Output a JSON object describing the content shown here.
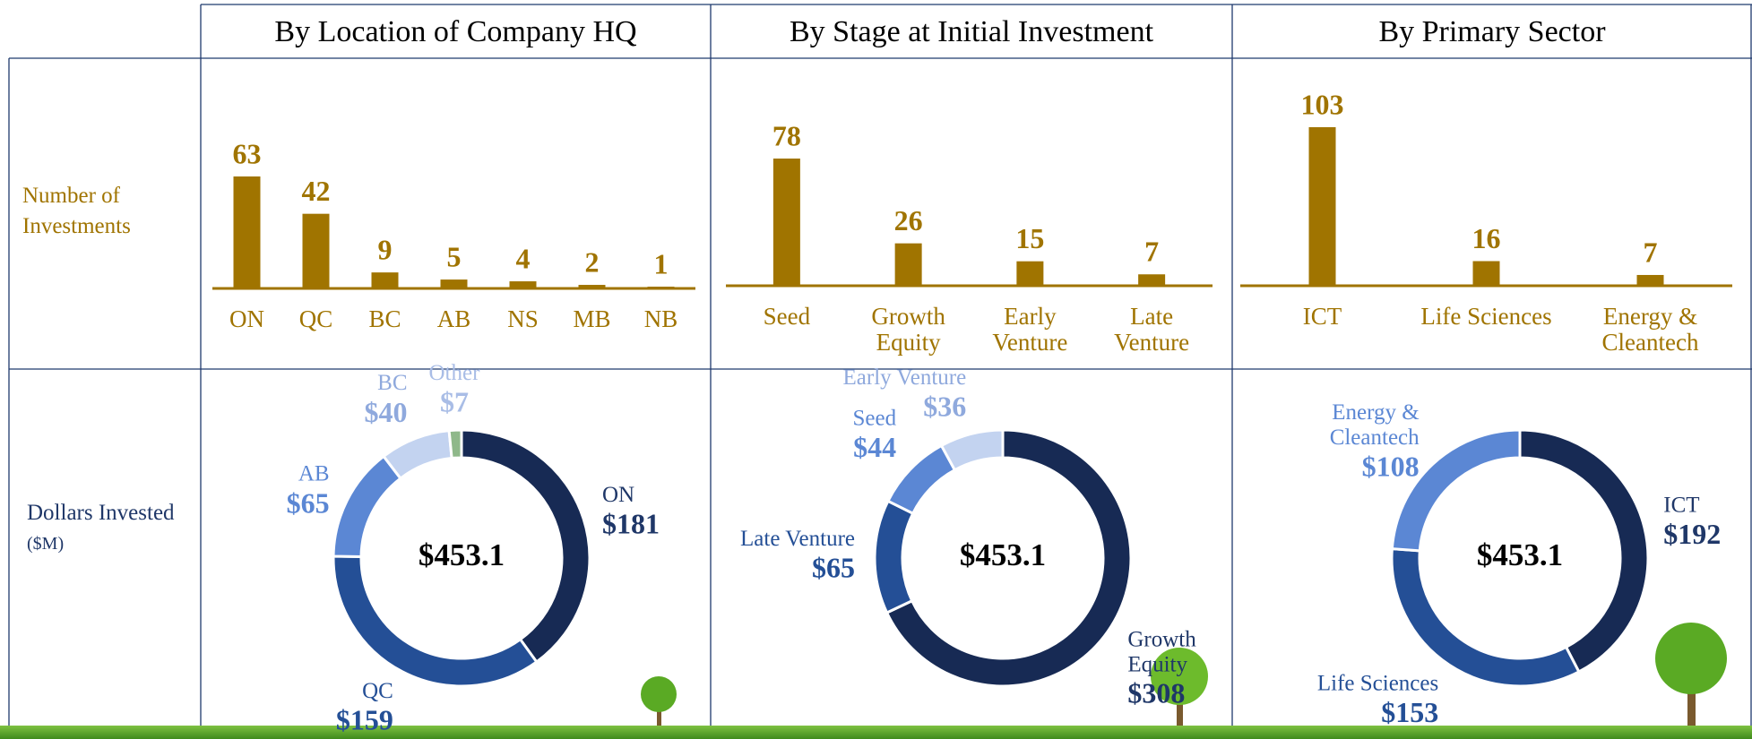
{
  "rows": [
    {
      "label": "Number of Investments"
    },
    {
      "label": "Dollars Invested",
      "unit": "($M)"
    }
  ],
  "chart_data": [
    {
      "type": "bar",
      "title": "By Location of Company HQ",
      "categories": [
        "ON",
        "QC",
        "BC",
        "AB",
        "NS",
        "MB",
        "NB"
      ],
      "values": [
        63,
        42,
        9,
        5,
        4,
        2,
        1
      ],
      "color": "#a07400"
    },
    {
      "type": "bar",
      "title": "By Stage at Initial Investment",
      "categories": [
        "Seed",
        "Growth Equity",
        "Early Venture",
        "Late Venture"
      ],
      "values": [
        78,
        26,
        15,
        7
      ],
      "color": "#a07400"
    },
    {
      "type": "bar",
      "title": "By Primary Sector",
      "categories": [
        "ICT",
        "Life Sciences",
        "Energy & Cleantech"
      ],
      "values": [
        103,
        16,
        7
      ],
      "color": "#a07400"
    },
    {
      "type": "pie",
      "center_label": "$453.1",
      "categories": [
        "ON",
        "QC",
        "AB",
        "BC",
        "Other"
      ],
      "values": [
        181,
        159,
        65,
        40,
        7
      ],
      "value_labels": [
        "$181",
        "$159",
        "$65",
        "$40",
        "$7"
      ],
      "colors": [
        "#172a54",
        "#244f96",
        "#5b87d4",
        "#c3d3f0",
        "#8fb88a"
      ],
      "label_colors": [
        "#1f3768",
        "#244f96",
        "#5b87d4",
        "#8fa9dd",
        "#a9bde6"
      ]
    },
    {
      "type": "pie",
      "center_label": "$453.1",
      "categories": [
        "Growth Equity",
        "Late Venture",
        "Seed",
        "Early Venture"
      ],
      "values": [
        308,
        65,
        44,
        36
      ],
      "value_labels": [
        "$308",
        "$65",
        "$44",
        "$36"
      ],
      "colors": [
        "#172a54",
        "#244f96",
        "#5b87d4",
        "#c3d3f0"
      ],
      "label_colors": [
        "#1f3768",
        "#244f96",
        "#5b87d4",
        "#8fa9dd"
      ]
    },
    {
      "type": "pie",
      "center_label": "$453.1",
      "categories": [
        "ICT",
        "Life Sciences",
        "Energy & Cleantech"
      ],
      "values": [
        192,
        153,
        108
      ],
      "value_labels": [
        "$192",
        "$153",
        "$108"
      ],
      "colors": [
        "#172a54",
        "#244f96",
        "#5b87d4"
      ],
      "label_colors": [
        "#1f3768",
        "#244f96",
        "#5b87d4"
      ]
    }
  ]
}
